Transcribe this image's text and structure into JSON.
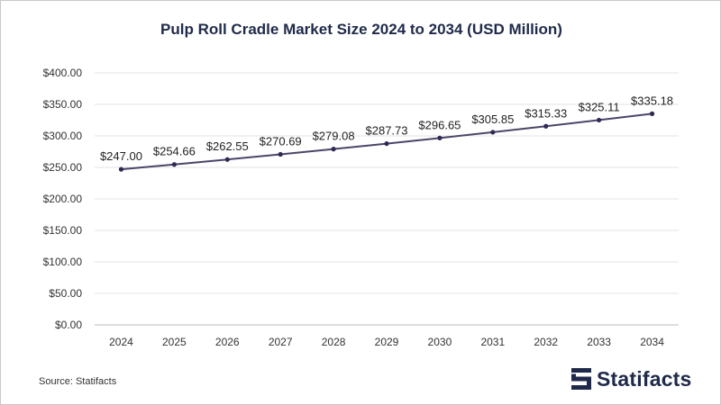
{
  "brand": {
    "name": "Statifacts",
    "logo_icon": "statifacts-logo-icon",
    "color": "#1f2a4a"
  },
  "source": "Source: Statifacts",
  "chart_data": {
    "type": "line",
    "title": "Pulp Roll Cradle Market Size 2024 to 2034 (USD Million)",
    "xlabel": "",
    "ylabel": "",
    "categories": [
      "2024",
      "2025",
      "2026",
      "2027",
      "2028",
      "2029",
      "2030",
      "2031",
      "2032",
      "2033",
      "2034"
    ],
    "series": [
      {
        "values": [
          247.0,
          254.66,
          262.55,
          270.69,
          279.08,
          287.73,
          296.65,
          305.85,
          315.33,
          325.11,
          335.18
        ],
        "labels": [
          "$247.00",
          "$254.66",
          "$262.55",
          "$270.69",
          "$279.08",
          "$287.73",
          "$296.65",
          "$305.85",
          "$315.33",
          "$325.11",
          "$335.18"
        ],
        "color": "#4a4668"
      }
    ],
    "ylim": [
      0,
      400
    ],
    "yticks": [
      0,
      50,
      100,
      150,
      200,
      250,
      300,
      350,
      400
    ],
    "ytick_labels": [
      "$0.00",
      "$50.00",
      "$100.00",
      "$150.00",
      "$200.00",
      "$250.00",
      "$300.00",
      "$350.00",
      "$400.00"
    ],
    "grid": true,
    "grid_color": "#e3e3e3",
    "legend": "none"
  }
}
